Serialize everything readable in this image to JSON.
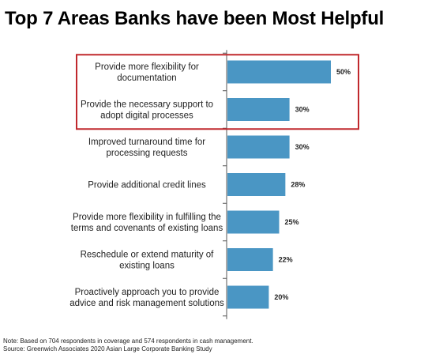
{
  "title": "Top 7 Areas Banks have been Most Helpful",
  "chart_data": {
    "type": "bar",
    "orientation": "horizontal",
    "categories": [
      [
        "Provide more flexibility for",
        "documentation"
      ],
      [
        "Provide the necessary support to",
        "adopt digital processes"
      ],
      [
        "Improved turnaround time for",
        "processing requests"
      ],
      [
        "Provide additional credit lines"
      ],
      [
        "Provide more flexibility in fulfilling the",
        "terms and covenants of existing loans"
      ],
      [
        "Reschedule or extend maturity of",
        "existing loans"
      ],
      [
        "Proactively approach you to provide",
        "advice and risk management solutions"
      ]
    ],
    "values": [
      50,
      30,
      30,
      28,
      25,
      22,
      20
    ],
    "value_labels": [
      "50%",
      "30%",
      "30%",
      "28%",
      "25%",
      "22%",
      "20%"
    ],
    "unit": "%",
    "highlighted": [
      0,
      1
    ],
    "bar_color": "#4a96c4",
    "highlight_color": "#c0282d",
    "grid": false,
    "legend": "none"
  },
  "footnote": {
    "note": "Note: Based on 704 respondents in coverage and 574 respondents in cash management.",
    "source": "Source: Greenwich Associates 2020 Asian Large Corporate Banking Study"
  }
}
